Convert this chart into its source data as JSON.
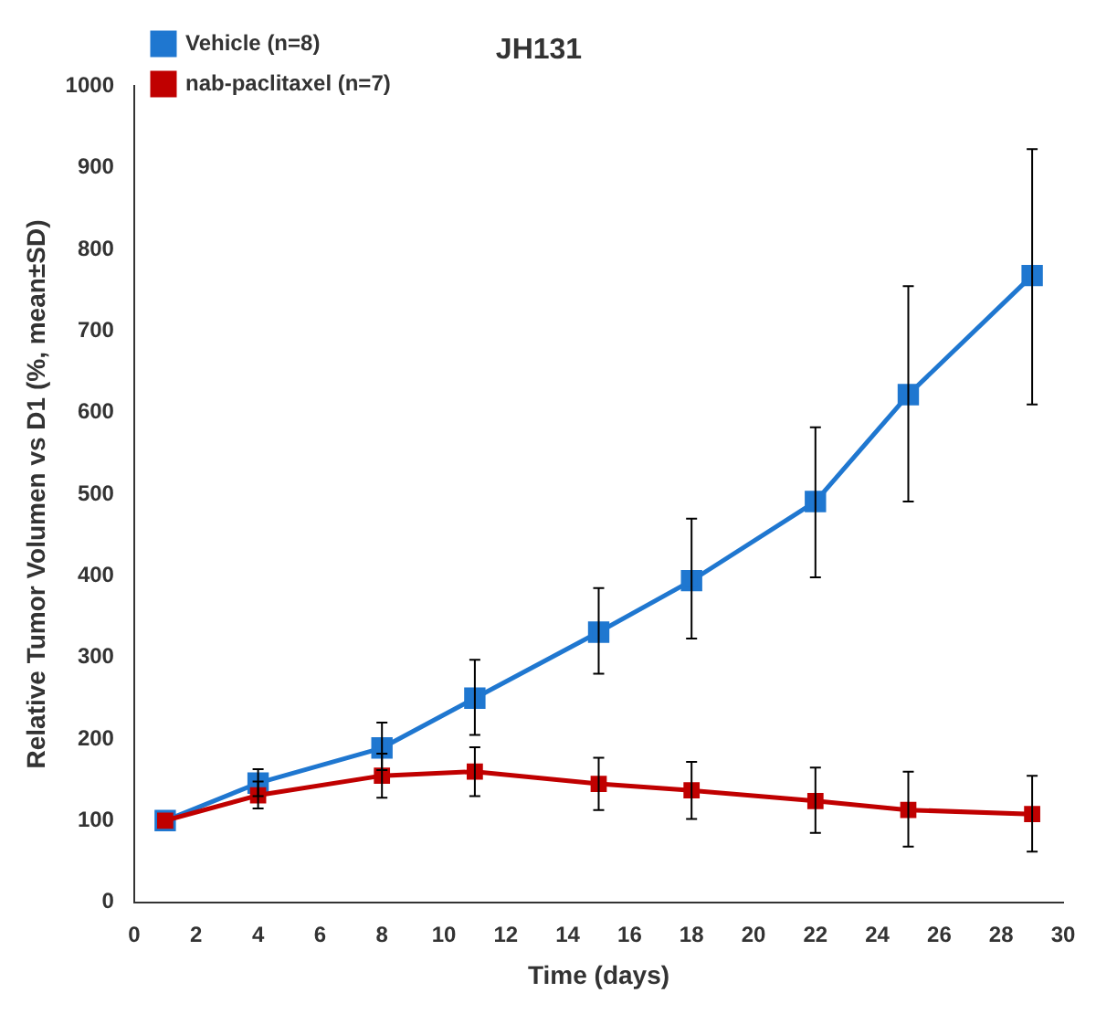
{
  "chart_data": {
    "type": "line",
    "title": "JH131",
    "xlabel": "Time (days)",
    "ylabel": "Relative Tumor Volumen vs D1 (%, mean±SD)",
    "x": [
      1,
      4,
      8,
      11,
      15,
      18,
      22,
      25,
      29
    ],
    "series": [
      {
        "name": "Vehicle (n=8)",
        "color": "#1f77d0",
        "values": [
          100,
          146,
          189,
          250,
          331,
          394,
          491,
          622,
          768
        ],
        "errors": [
          null,
          [
            130,
            163
          ],
          [
            162,
            220
          ],
          [
            205,
            297
          ],
          [
            280,
            385
          ],
          [
            323,
            470
          ],
          [
            398,
            582
          ],
          [
            491,
            755
          ],
          [
            610,
            923
          ]
        ]
      },
      {
        "name": "nab-paclitaxel (n=7)",
        "color": "#c00000",
        "values": [
          100,
          131,
          155,
          160,
          145,
          137,
          124,
          113,
          108
        ],
        "errors": [
          null,
          [
            115,
            148
          ],
          [
            128,
            182
          ],
          [
            130,
            190
          ],
          [
            113,
            177
          ],
          [
            102,
            172
          ],
          [
            85,
            165
          ],
          [
            68,
            160
          ],
          [
            62,
            155
          ]
        ]
      }
    ],
    "xlim": [
      0,
      30
    ],
    "xticks": [
      0,
      2,
      4,
      6,
      8,
      10,
      12,
      14,
      16,
      18,
      20,
      22,
      24,
      26,
      28,
      30
    ],
    "ylim": [
      0,
      1000
    ],
    "yticks": [
      0,
      100,
      200,
      300,
      400,
      500,
      600,
      700,
      800,
      900,
      1000
    ],
    "legend": "top left",
    "marker": "square",
    "line_style": "solid",
    "grid": false
  }
}
